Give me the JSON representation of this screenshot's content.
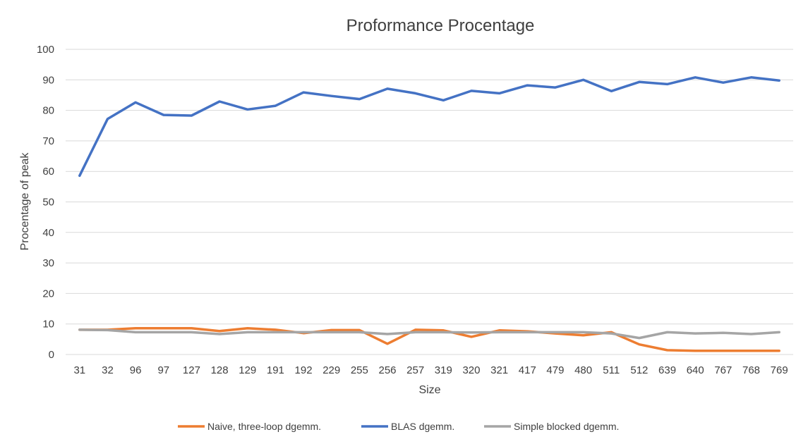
{
  "chart_data": {
    "type": "line",
    "title": "Proformance Procentage",
    "xlabel": "Size",
    "ylabel": "Procentage of peak",
    "ylim": [
      0,
      100
    ],
    "yticks": [
      0,
      10,
      20,
      30,
      40,
      50,
      60,
      70,
      80,
      90,
      100
    ],
    "grid": true,
    "legend_position": "bottom",
    "categories": [
      "31",
      "32",
      "96",
      "97",
      "127",
      "128",
      "129",
      "191",
      "192",
      "229",
      "255",
      "256",
      "257",
      "319",
      "320",
      "321",
      "417",
      "479",
      "480",
      "511",
      "512",
      "639",
      "640",
      "767",
      "768",
      "769"
    ],
    "series": [
      {
        "name": "Naive, three-loop dgemm.",
        "color": "#ED7D31",
        "values": [
          8.1,
          8.1,
          8.6,
          8.6,
          8.6,
          7.7,
          8.6,
          8.1,
          7.0,
          8.0,
          8.0,
          3.5,
          8.1,
          7.9,
          5.8,
          7.9,
          7.6,
          6.9,
          6.3,
          7.3,
          3.3,
          1.4,
          1.2,
          1.2,
          1.2,
          1.2
        ]
      },
      {
        "name": "BLAS dgemm.",
        "color": "#4472C4",
        "values": [
          58.6,
          77.2,
          82.6,
          78.5,
          78.3,
          82.9,
          80.3,
          81.5,
          85.9,
          84.7,
          83.7,
          87.1,
          85.6,
          83.3,
          86.4,
          85.6,
          88.2,
          87.5,
          90.0,
          86.3,
          89.3,
          88.6,
          90.8,
          89.1,
          90.8,
          89.8
        ]
      },
      {
        "name": "Simple blocked dgemm.",
        "color": "#A5A5A5",
        "values": [
          8.1,
          8.0,
          7.3,
          7.3,
          7.3,
          6.7,
          7.3,
          7.3,
          7.3,
          7.3,
          7.3,
          6.7,
          7.3,
          7.3,
          7.2,
          7.3,
          7.3,
          7.3,
          7.3,
          6.9,
          5.4,
          7.3,
          6.9,
          7.1,
          6.7,
          7.3
        ]
      }
    ]
  }
}
